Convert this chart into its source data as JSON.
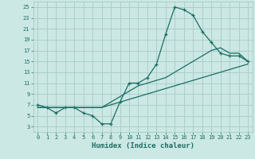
{
  "xlabel": "Humidex (Indice chaleur)",
  "bg_color": "#cce8e4",
  "grid_color": "#aacfcb",
  "line_color": "#1a6e64",
  "xlim": [
    -0.5,
    23.5
  ],
  "ylim": [
    2,
    26
  ],
  "xticks": [
    0,
    1,
    2,
    3,
    4,
    5,
    6,
    7,
    8,
    9,
    10,
    11,
    12,
    13,
    14,
    15,
    16,
    17,
    18,
    19,
    20,
    21,
    22,
    23
  ],
  "yticks": [
    3,
    5,
    7,
    9,
    11,
    13,
    15,
    17,
    19,
    21,
    23,
    25
  ],
  "line1_x": [
    0,
    1,
    2,
    3,
    4,
    5,
    6,
    7,
    8,
    9,
    10,
    11,
    12,
    13,
    14,
    15,
    16,
    17,
    18,
    19,
    20,
    21,
    22,
    23
  ],
  "line1_y": [
    7.0,
    6.5,
    5.5,
    6.5,
    6.5,
    5.5,
    5.0,
    3.5,
    3.5,
    7.5,
    11.0,
    11.0,
    12.0,
    14.5,
    20.0,
    25.0,
    24.5,
    23.5,
    20.5,
    18.5,
    16.5,
    16.0,
    16.0,
    15.0
  ],
  "line2_x": [
    0,
    1,
    2,
    3,
    4,
    5,
    6,
    7,
    8,
    9,
    10,
    11,
    12,
    13,
    14,
    15,
    16,
    17,
    18,
    19,
    20,
    21,
    22,
    23
  ],
  "line2_y": [
    6.5,
    6.5,
    6.5,
    6.5,
    6.5,
    6.5,
    6.5,
    6.5,
    7.0,
    7.5,
    8.0,
    8.5,
    9.0,
    9.5,
    10.0,
    10.5,
    11.0,
    11.5,
    12.0,
    12.5,
    13.0,
    13.5,
    14.0,
    14.5
  ],
  "line3_x": [
    0,
    1,
    2,
    3,
    4,
    5,
    6,
    7,
    8,
    9,
    10,
    11,
    12,
    13,
    14,
    15,
    16,
    17,
    18,
    19,
    20,
    21,
    22,
    23
  ],
  "line3_y": [
    6.5,
    6.5,
    6.5,
    6.5,
    6.5,
    6.5,
    6.5,
    6.5,
    7.5,
    8.5,
    9.5,
    10.5,
    11.0,
    11.5,
    12.0,
    13.0,
    14.0,
    15.0,
    16.0,
    17.0,
    17.5,
    16.5,
    16.5,
    15.0
  ]
}
